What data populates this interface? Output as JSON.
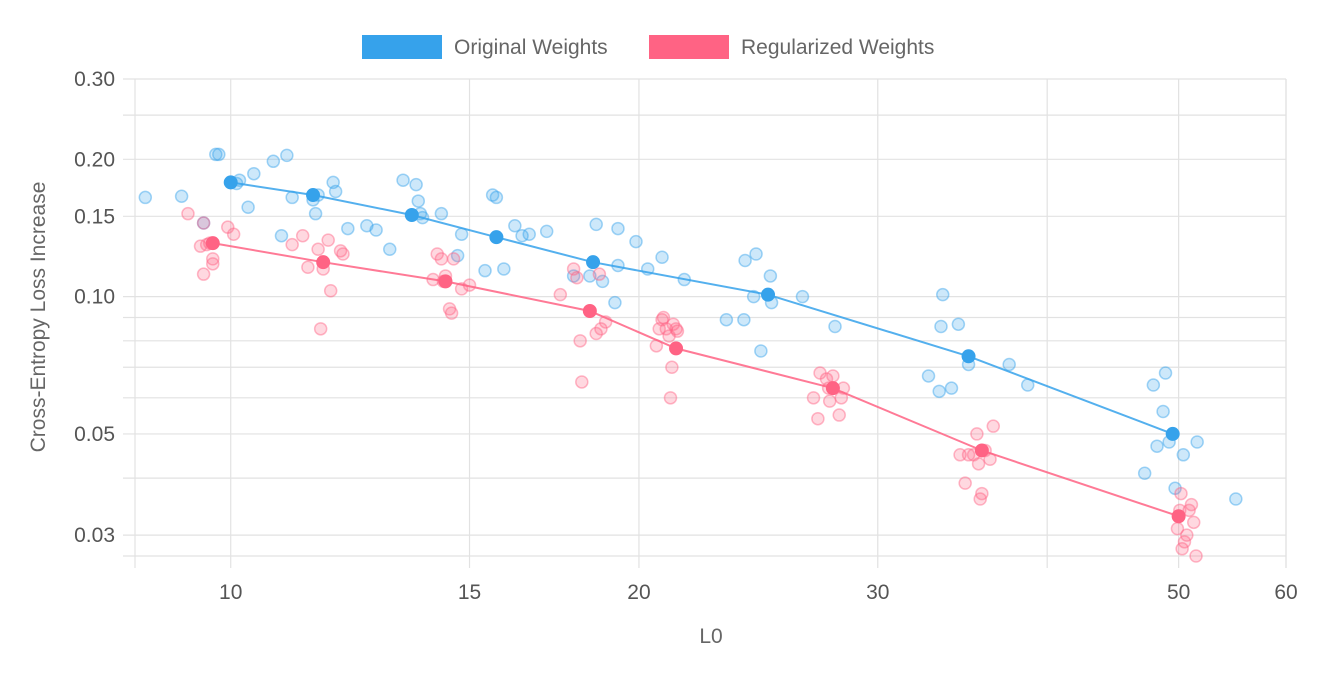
{
  "chart_data": {
    "type": "scatter",
    "x_scale": "log",
    "y_scale": "log",
    "xlabel": "L0",
    "ylabel": "Cross-Entropy Loss Increase",
    "xlim": [
      8.5,
      60
    ],
    "ylim": [
      0.027,
      0.3
    ],
    "x_ticks": [
      {
        "value": 10,
        "label": "10"
      },
      {
        "value": 15,
        "label": "15"
      },
      {
        "value": 20,
        "label": "20"
      },
      {
        "value": 30,
        "label": "30"
      },
      {
        "value": 50,
        "label": "50"
      },
      {
        "value": 60,
        "label": "60"
      }
    ],
    "x_minor_gridlines": [
      40
    ],
    "y_ticks": [
      {
        "value": 0.03,
        "label": "0.03"
      },
      {
        "value": 0.05,
        "label": "0.05"
      },
      {
        "value": 0.1,
        "label": "0.10"
      },
      {
        "value": 0.15,
        "label": "0.15"
      },
      {
        "value": 0.2,
        "label": "0.20"
      },
      {
        "value": 0.3,
        "label": "0.30"
      }
    ],
    "y_minor_gridlines": [
      0.04,
      0.06,
      0.07,
      0.08,
      0.09,
      0.25
    ],
    "legend_position": "top-center",
    "series": [
      {
        "name": "Original Weights",
        "color": "#36a2eb",
        "points": [
          [
            8.65,
            0.165
          ],
          [
            9.2,
            0.166
          ],
          [
            9.55,
            0.145
          ],
          [
            9.75,
            0.205
          ],
          [
            9.8,
            0.205
          ],
          [
            10.1,
            0.177
          ],
          [
            10.15,
            0.18
          ],
          [
            10.3,
            0.157
          ],
          [
            10.4,
            0.186
          ],
          [
            10.75,
            0.198
          ],
          [
            10.9,
            0.136
          ],
          [
            11.0,
            0.204
          ],
          [
            11.1,
            0.165
          ],
          [
            11.5,
            0.163
          ],
          [
            11.55,
            0.152
          ],
          [
            11.6,
            0.167
          ],
          [
            11.9,
            0.178
          ],
          [
            11.95,
            0.17
          ],
          [
            12.2,
            0.141
          ],
          [
            12.6,
            0.143
          ],
          [
            12.8,
            0.14
          ],
          [
            13.1,
            0.127
          ],
          [
            13.4,
            0.18
          ],
          [
            13.7,
            0.176
          ],
          [
            13.75,
            0.162
          ],
          [
            13.8,
            0.152
          ],
          [
            13.85,
            0.149
          ],
          [
            14.3,
            0.152
          ],
          [
            14.7,
            0.123
          ],
          [
            14.8,
            0.137
          ],
          [
            15.4,
            0.114
          ],
          [
            15.6,
            0.167
          ],
          [
            15.7,
            0.165
          ],
          [
            15.9,
            0.115
          ],
          [
            16.2,
            0.143
          ],
          [
            16.4,
            0.136
          ],
          [
            16.6,
            0.137
          ],
          [
            17.1,
            0.139
          ],
          [
            17.9,
            0.111
          ],
          [
            18.4,
            0.111
          ],
          [
            18.6,
            0.144
          ],
          [
            18.8,
            0.108
          ],
          [
            19.2,
            0.097
          ],
          [
            19.3,
            0.117
          ],
          [
            19.3,
            0.141
          ],
          [
            19.9,
            0.132
          ],
          [
            20.3,
            0.115
          ],
          [
            20.8,
            0.122
          ],
          [
            21.6,
            0.109
          ],
          [
            23.2,
            0.089
          ],
          [
            23.9,
            0.089
          ],
          [
            23.95,
            0.12
          ],
          [
            24.3,
            0.1
          ],
          [
            24.4,
            0.124
          ],
          [
            24.6,
            0.076
          ],
          [
            25.0,
            0.111
          ],
          [
            25.05,
            0.097
          ],
          [
            26.4,
            0.1
          ],
          [
            27.9,
            0.086
          ],
          [
            32.7,
            0.067
          ],
          [
            33.3,
            0.062
          ],
          [
            33.4,
            0.086
          ],
          [
            33.5,
            0.101
          ],
          [
            34.0,
            0.063
          ],
          [
            34.4,
            0.087
          ],
          [
            35.0,
            0.071
          ],
          [
            37.5,
            0.071
          ],
          [
            38.7,
            0.064
          ],
          [
            47.2,
            0.041
          ],
          [
            47.9,
            0.064
          ],
          [
            48.2,
            0.047
          ],
          [
            48.7,
            0.056
          ],
          [
            48.9,
            0.068
          ],
          [
            49.2,
            0.048
          ],
          [
            49.7,
            0.038
          ],
          [
            50.4,
            0.045
          ],
          [
            51.6,
            0.048
          ],
          [
            55.1,
            0.036
          ]
        ],
        "mean_points": [
          [
            10.0,
            0.178
          ],
          [
            11.5,
            0.167
          ],
          [
            13.6,
            0.151
          ],
          [
            15.7,
            0.135
          ],
          [
            18.5,
            0.119
          ],
          [
            24.9,
            0.101
          ],
          [
            35.0,
            0.074
          ],
          [
            49.5,
            0.05
          ]
        ]
      },
      {
        "name": "Regularized Weights",
        "color": "#ff6384",
        "points": [
          [
            9.3,
            0.152
          ],
          [
            9.5,
            0.129
          ],
          [
            9.55,
            0.145
          ],
          [
            9.55,
            0.112
          ],
          [
            9.6,
            0.13
          ],
          [
            9.65,
            0.131
          ],
          [
            9.7,
            0.118
          ],
          [
            9.7,
            0.121
          ],
          [
            9.95,
            0.142
          ],
          [
            10.05,
            0.137
          ],
          [
            11.1,
            0.13
          ],
          [
            11.3,
            0.136
          ],
          [
            11.4,
            0.116
          ],
          [
            11.6,
            0.127
          ],
          [
            11.65,
            0.085
          ],
          [
            11.7,
            0.115
          ],
          [
            11.8,
            0.133
          ],
          [
            11.85,
            0.103
          ],
          [
            12.05,
            0.126
          ],
          [
            12.1,
            0.124
          ],
          [
            14.1,
            0.109
          ],
          [
            14.2,
            0.124
          ],
          [
            14.3,
            0.121
          ],
          [
            14.35,
            0.108
          ],
          [
            14.4,
            0.111
          ],
          [
            14.5,
            0.094
          ],
          [
            14.55,
            0.092
          ],
          [
            14.6,
            0.121
          ],
          [
            14.8,
            0.104
          ],
          [
            15.0,
            0.106
          ],
          [
            17.5,
            0.101
          ],
          [
            17.9,
            0.115
          ],
          [
            18.0,
            0.11
          ],
          [
            18.1,
            0.08
          ],
          [
            18.15,
            0.065
          ],
          [
            18.4,
            0.093
          ],
          [
            18.6,
            0.083
          ],
          [
            18.7,
            0.112
          ],
          [
            18.75,
            0.085
          ],
          [
            18.9,
            0.088
          ],
          [
            20.6,
            0.078
          ],
          [
            20.7,
            0.085
          ],
          [
            20.8,
            0.089
          ],
          [
            20.85,
            0.09
          ],
          [
            20.95,
            0.085
          ],
          [
            21.05,
            0.082
          ],
          [
            21.1,
            0.06
          ],
          [
            21.15,
            0.07
          ],
          [
            21.2,
            0.087
          ],
          [
            21.3,
            0.085
          ],
          [
            21.35,
            0.084
          ],
          [
            26.9,
            0.06
          ],
          [
            27.1,
            0.054
          ],
          [
            27.2,
            0.068
          ],
          [
            27.5,
            0.066
          ],
          [
            27.6,
            0.063
          ],
          [
            27.65,
            0.059
          ],
          [
            27.8,
            0.067
          ],
          [
            28.1,
            0.055
          ],
          [
            28.2,
            0.06
          ],
          [
            28.3,
            0.063
          ],
          [
            34.5,
            0.045
          ],
          [
            34.8,
            0.039
          ],
          [
            35.0,
            0.045
          ],
          [
            35.3,
            0.045
          ],
          [
            35.5,
            0.05
          ],
          [
            35.6,
            0.043
          ],
          [
            35.7,
            0.036
          ],
          [
            35.8,
            0.037
          ],
          [
            36.0,
            0.046
          ],
          [
            36.3,
            0.044
          ],
          [
            36.5,
            0.052
          ],
          [
            49.9,
            0.031
          ],
          [
            50.1,
            0.034
          ],
          [
            50.2,
            0.037
          ],
          [
            50.3,
            0.028
          ],
          [
            50.5,
            0.029
          ],
          [
            50.7,
            0.03
          ],
          [
            50.9,
            0.034
          ],
          [
            51.1,
            0.035
          ],
          [
            51.3,
            0.032
          ],
          [
            51.5,
            0.027
          ]
        ],
        "mean_points": [
          [
            9.7,
            0.131
          ],
          [
            11.7,
            0.119
          ],
          [
            14.4,
            0.108
          ],
          [
            18.4,
            0.093
          ],
          [
            21.3,
            0.077
          ],
          [
            27.8,
            0.063
          ],
          [
            35.8,
            0.046
          ],
          [
            50.0,
            0.033
          ]
        ]
      }
    ]
  }
}
